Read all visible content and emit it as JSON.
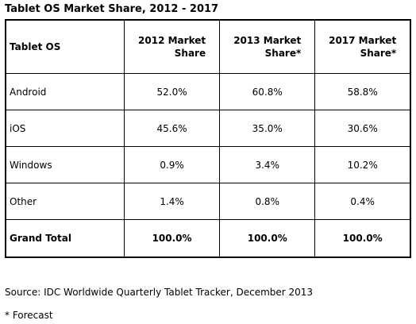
{
  "title": "Tablet OS Market Share, 2012 - 2017",
  "table": {
    "headers": [
      "Tablet OS",
      "2012 Market Share",
      "2013 Market Share*",
      "2017 Market Share*"
    ],
    "header_lines": [
      [
        "Tablet OS"
      ],
      [
        "2012 Market",
        "Share"
      ],
      [
        "2013 Market",
        "Share*"
      ],
      [
        "2017 Market",
        "Share*"
      ]
    ],
    "rows": [
      [
        "Android",
        "52.0%",
        "60.8%",
        "58.8%"
      ],
      [
        "iOS",
        "45.6%",
        "35.0%",
        "30.6%"
      ],
      [
        "Windows",
        "0.9%",
        "3.4%",
        "10.2%"
      ],
      [
        "Other",
        "1.4%",
        "0.8%",
        "0.4%"
      ],
      [
        "Grand Total",
        "100.0%",
        "100.0%",
        "100.0%"
      ]
    ]
  },
  "source": "Source: IDC Worldwide Quarterly Tablet Tracker, December 2013",
  "footnote": "* Forecast"
}
